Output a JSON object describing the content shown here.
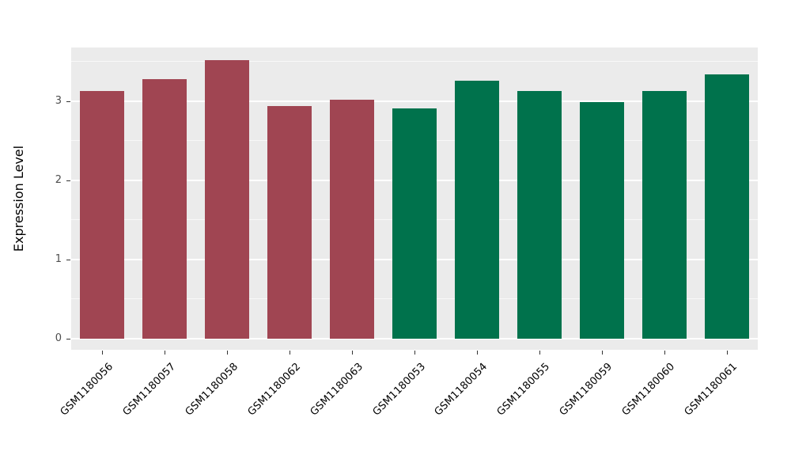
{
  "chart_data": {
    "type": "bar",
    "title": "",
    "xlabel": "",
    "ylabel": "Expression Level",
    "ylim": [
      0,
      3.66
    ],
    "yticks": [
      0,
      1,
      2,
      3
    ],
    "minor_ticks": [
      0.5,
      1.5,
      2.5,
      3.5
    ],
    "grid": "on",
    "legend": "none",
    "categories": [
      "GSM1180056",
      "GSM1180057",
      "GSM1180058",
      "GSM1180062",
      "GSM1180063",
      "GSM1180053",
      "GSM1180054",
      "GSM1180055",
      "GSM1180059",
      "GSM1180060",
      "GSM1180061"
    ],
    "values": [
      3.13,
      3.28,
      3.52,
      2.94,
      3.02,
      2.91,
      3.26,
      3.13,
      2.99,
      3.13,
      3.34
    ],
    "groups": [
      "groupA",
      "groupA",
      "groupA",
      "groupA",
      "groupA",
      "groupB",
      "groupB",
      "groupB",
      "groupB",
      "groupB",
      "groupB"
    ],
    "colors": {
      "groupA": "#A04552",
      "groupB": "#00724C",
      "panel_bg": "#EBEBEB",
      "grid": "#FFFFFF",
      "tick_text": "#4D4D4D",
      "axis_title": "#000000"
    }
  }
}
